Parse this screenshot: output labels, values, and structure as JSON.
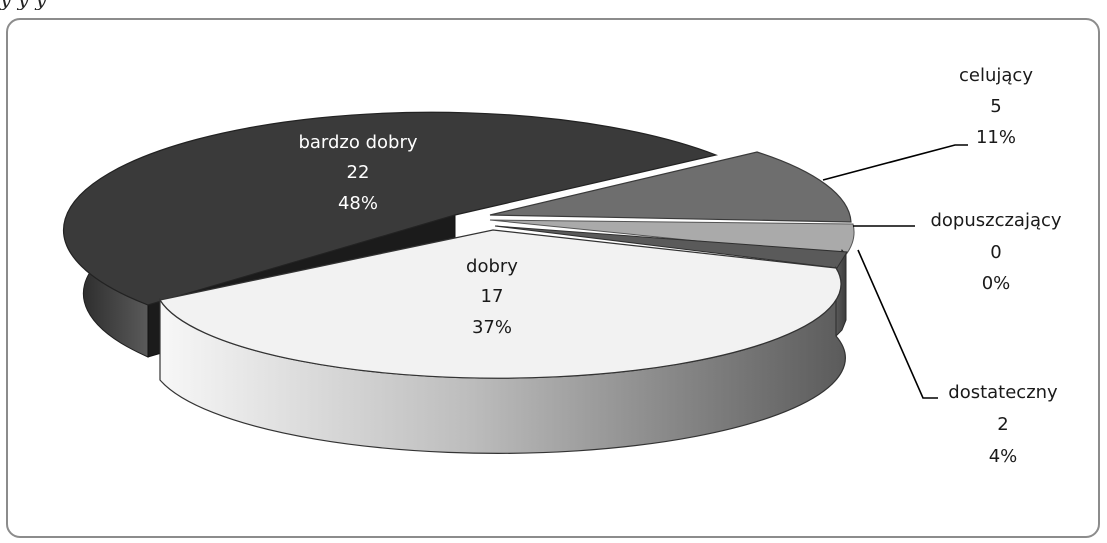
{
  "caption_fragment": "y                          y              y",
  "chart_data": {
    "type": "pie",
    "style": "3d-exploded",
    "slices": [
      {
        "label": "celujący",
        "count": "5",
        "percent": "11%",
        "color": "#6e6e6e"
      },
      {
        "label": "dopuszczający",
        "count": "0",
        "percent": "0%",
        "color": "#aaaaaa"
      },
      {
        "label": "dostateczny",
        "count": "2",
        "percent": "4%",
        "color": "#5a5a5a"
      },
      {
        "label": "dobry",
        "count": "17",
        "percent": "37%",
        "color": "#f0f0f0"
      },
      {
        "label": "bardzo dobry",
        "count": "22",
        "percent": "48%",
        "color": "#3a3a3a"
      }
    ]
  }
}
